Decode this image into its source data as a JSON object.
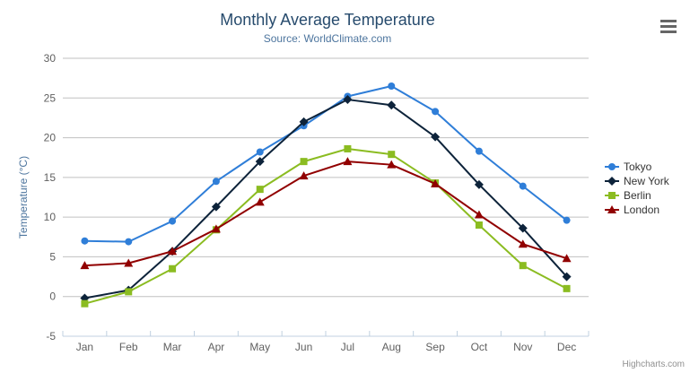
{
  "credits": "Highcharts.com",
  "menu": {
    "icon": "hamburger-icon"
  },
  "chart_data": {
    "type": "line",
    "title": "Monthly Average Temperature",
    "subtitle": "Source: WorldClimate.com",
    "xlabel": "",
    "ylabel": "Temperature (°C)",
    "categories": [
      "Jan",
      "Feb",
      "Mar",
      "Apr",
      "May",
      "Jun",
      "Jul",
      "Aug",
      "Sep",
      "Oct",
      "Nov",
      "Dec"
    ],
    "ylim": [
      -5,
      30
    ],
    "tick_interval": 5,
    "yticks": [
      "-5",
      "0",
      "5",
      "10",
      "15",
      "20",
      "25",
      "30"
    ],
    "grid": true,
    "legend_position": "right",
    "colors": {
      "grid": "#c0c0c0",
      "axis_line": "#c0d0e0",
      "tick": "#c0d0e0",
      "title": "#274b6d",
      "subtitle": "#4d759e",
      "axis_label": "#606060",
      "legend_text": "#333333",
      "menu_icon": "#666666",
      "credits_text": "#909090"
    },
    "series": [
      {
        "name": "Tokyo",
        "color": "#2f7ed8",
        "marker": "circle",
        "values": [
          7.0,
          6.9,
          9.5,
          14.5,
          18.2,
          21.5,
          25.2,
          26.5,
          23.3,
          18.3,
          13.9,
          9.6
        ]
      },
      {
        "name": "New York",
        "color": "#0d233a",
        "marker": "diamond",
        "values": [
          -0.2,
          0.8,
          5.7,
          11.3,
          17.0,
          22.0,
          24.8,
          24.1,
          20.1,
          14.1,
          8.6,
          2.5
        ]
      },
      {
        "name": "Berlin",
        "color": "#8bbc21",
        "marker": "square",
        "values": [
          -0.9,
          0.6,
          3.5,
          8.4,
          13.5,
          17.0,
          18.6,
          17.9,
          14.3,
          9.0,
          3.9,
          1.0
        ]
      },
      {
        "name": "London",
        "color": "#910000",
        "marker": "triangle",
        "values": [
          3.9,
          4.2,
          5.7,
          8.5,
          11.9,
          15.2,
          17.0,
          16.6,
          14.2,
          10.3,
          6.6,
          4.8
        ]
      }
    ]
  }
}
